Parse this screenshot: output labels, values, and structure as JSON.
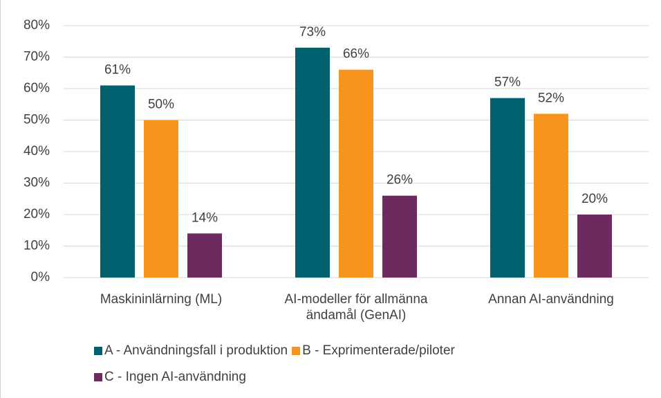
{
  "chart_data": {
    "type": "bar",
    "categories": [
      "Maskininlärning (ML)",
      "AI-modeller för allmänna ändamål (GenAI)",
      "Annan AI-användning"
    ],
    "series": [
      {
        "name": "A - Användningsfall i produktion",
        "color": "#00616f",
        "values": [
          61,
          73,
          57
        ],
        "value_labels": [
          "61%",
          "73%",
          "57%"
        ]
      },
      {
        "name": "B - Exprimenterade/piloter",
        "color": "#f7941d",
        "values": [
          50,
          66,
          52
        ],
        "value_labels": [
          "50%",
          "66%",
          "52%"
        ]
      },
      {
        "name": "C - Ingen AI-användning",
        "color": "#6d2a5e",
        "values": [
          14,
          26,
          20
        ],
        "value_labels": [
          "14%",
          "26%",
          "20%"
        ]
      }
    ],
    "ylim": [
      0,
      80
    ],
    "yticks": [
      {
        "value": 0,
        "label": "0%"
      },
      {
        "value": 10,
        "label": "10%"
      },
      {
        "value": 20,
        "label": "20%"
      },
      {
        "value": 30,
        "label": "30%"
      },
      {
        "value": 40,
        "label": "40%"
      },
      {
        "value": 50,
        "label": "50%"
      },
      {
        "value": 60,
        "label": "60%"
      },
      {
        "value": 70,
        "label": "70%"
      },
      {
        "value": 80,
        "label": "80%"
      }
    ],
    "grid": true,
    "legend": "bottom"
  }
}
